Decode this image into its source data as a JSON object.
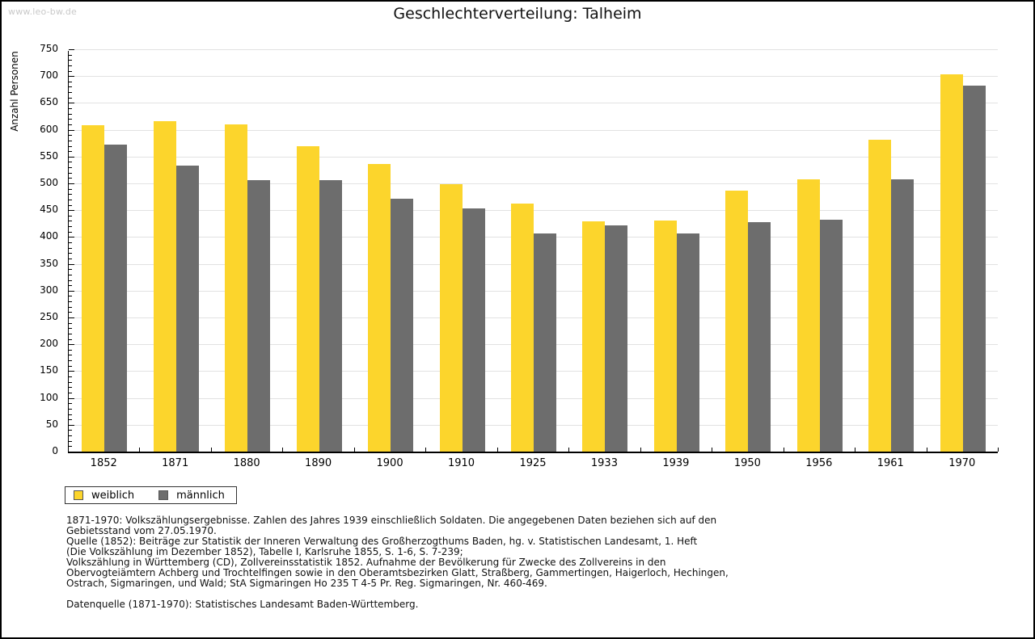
{
  "page": {
    "watermark": "www.leo-bw.de",
    "title": "Geschlechterverteilung: Talheim"
  },
  "chart_data": {
    "type": "bar",
    "title": "Geschlechterverteilung: Talheim",
    "xlabel": "",
    "ylabel": "Anzahl Personen",
    "ylim": [
      0,
      750
    ],
    "y_tick_step": 50,
    "y_minor_tick_step": 10,
    "y_ticks": [
      0,
      50,
      100,
      150,
      200,
      250,
      300,
      350,
      400,
      450,
      500,
      550,
      600,
      650,
      700,
      750
    ],
    "grid": true,
    "legend_position": "bottom-left",
    "categories": [
      "1852",
      "1871",
      "1880",
      "1890",
      "1900",
      "1910",
      "1925",
      "1933",
      "1939",
      "1950",
      "1956",
      "1961",
      "1970"
    ],
    "series": [
      {
        "name": "weiblich",
        "color": "#FCD52C",
        "values": [
          608,
          616,
          610,
          570,
          536,
          498,
          462,
          429,
          430,
          486,
          507,
          582,
          704
        ]
      },
      {
        "name": "männlich",
        "color": "#6D6D6D",
        "values": [
          573,
          533,
          506,
          506,
          472,
          454,
          407,
          421,
          407,
          428,
          432,
          508,
          683
        ]
      }
    ]
  },
  "footnotes": {
    "lines": [
      "1871-1970: Volkszählungsergebnisse. Zahlen des Jahres 1939 einschließlich Soldaten. Die angegebenen Daten beziehen sich auf den",
      "Gebietsstand vom 27.05.1970.",
      "Quelle (1852): Beiträge zur Statistik der Inneren Verwaltung des Großherzogthums Baden, hg. v. Statistischen Landesamt, 1. Heft",
      "(Die Volkszählung im Dezember 1852), Tabelle I, Karlsruhe 1855, S. 1-6, S. 7-239;",
      "Volkszählung in Württemberg (CD), Zollvereinsstatistik 1852. Aufnahme der Bevölkerung für Zwecke des Zollvereins in den",
      "Obervogteiämtern Achberg und Trochtelfingen sowie in den Oberamtsbezirken Glatt, Straßberg, Gammertingen, Haigerloch, Hechingen,",
      "Ostrach, Sigmaringen, und Wald; StA Sigmaringen Ho 235 T 4-5 Pr. Reg. Sigmaringen, Nr. 460-469."
    ],
    "datasource": "Datenquelle (1871-1970): Statistisches Landesamt Baden-Württemberg."
  },
  "colors": {
    "grid": "#E2E2E2",
    "axis": "#000000",
    "watermark": "#C9C9C9"
  }
}
